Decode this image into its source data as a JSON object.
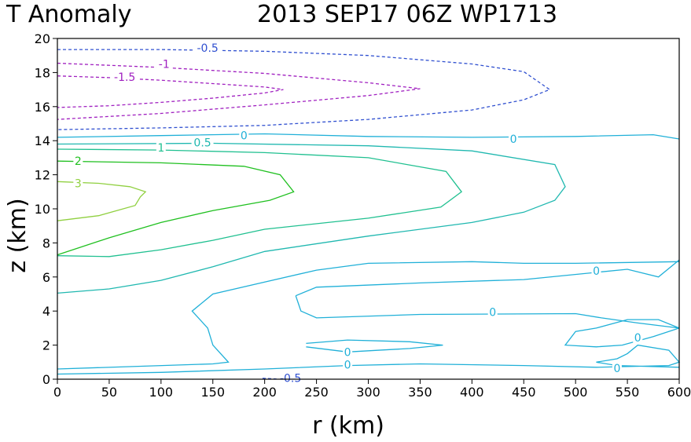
{
  "chart_data": {
    "type": "contour",
    "title_left": "T Anomaly",
    "title_right": "2013 SEP17 06Z   WP1713",
    "xlabel": "r (km)",
    "ylabel": "z (km)",
    "xlim": [
      0,
      600
    ],
    "ylim": [
      0,
      20
    ],
    "xticks": [
      0,
      50,
      100,
      150,
      200,
      250,
      300,
      350,
      400,
      450,
      500,
      550,
      600
    ],
    "yticks": [
      0,
      2,
      4,
      6,
      8,
      10,
      12,
      14,
      16,
      18,
      20
    ],
    "xtick_labels": [
      "0",
      "50",
      "100",
      "150",
      "200",
      "250",
      "300",
      "350",
      "400",
      "450",
      "500",
      "550",
      "600"
    ],
    "ytick_labels": [
      "0",
      "2",
      "4",
      "6",
      "8",
      "10",
      "12",
      "14",
      "16",
      "18",
      "20"
    ],
    "grid": false,
    "contours": [
      {
        "level": -1.5,
        "label": "-1.5",
        "color": "#a020c0",
        "dashed": true,
        "points": [
          [
            0,
            17.8
          ],
          [
            50,
            17.7
          ],
          [
            100,
            17.55
          ],
          [
            150,
            17.35
          ],
          [
            200,
            17.15
          ],
          [
            218,
            17.0
          ],
          [
            200,
            16.8
          ],
          [
            150,
            16.5
          ],
          [
            100,
            16.25
          ],
          [
            50,
            16.05
          ],
          [
            0,
            15.95
          ]
        ],
        "labels": [
          {
            "x": 65,
            "y": 17.75
          }
        ]
      },
      {
        "level": -1,
        "label": "-1",
        "color": "#a020c0",
        "dashed": true,
        "points": [
          [
            0,
            18.55
          ],
          [
            100,
            18.3
          ],
          [
            200,
            17.95
          ],
          [
            300,
            17.4
          ],
          [
            350,
            17.05
          ],
          [
            300,
            16.65
          ],
          [
            200,
            16.1
          ],
          [
            100,
            15.6
          ],
          [
            0,
            15.25
          ]
        ],
        "labels": [
          {
            "x": 103,
            "y": 18.5
          }
        ]
      },
      {
        "level": -0.5,
        "label": "-0.5",
        "color": "#3050d0",
        "dashed": true,
        "points": [
          [
            0,
            19.35
          ],
          [
            100,
            19.35
          ],
          [
            200,
            19.25
          ],
          [
            300,
            19.0
          ],
          [
            400,
            18.5
          ],
          [
            450,
            18.05
          ],
          [
            475,
            17.0
          ],
          [
            450,
            16.4
          ],
          [
            400,
            15.8
          ],
          [
            300,
            15.25
          ],
          [
            200,
            14.9
          ],
          [
            100,
            14.75
          ],
          [
            0,
            14.65
          ]
        ],
        "labels": [
          {
            "x": 145,
            "y": 19.45
          }
        ]
      },
      {
        "level": -0.5,
        "label": "-0.5",
        "color": "#3050d0",
        "dashed": true,
        "points": [
          [
            198,
            0.05
          ],
          [
            210,
            0.02
          ],
          [
            230,
            0.0
          ]
        ],
        "labels": [
          {
            "x": 225,
            "y": 0.08
          }
        ]
      },
      {
        "level": 0,
        "label": "0",
        "color": "#20b0d8",
        "dashed": false,
        "points": [
          [
            0,
            14.2
          ],
          [
            100,
            14.3
          ],
          [
            200,
            14.4
          ],
          [
            300,
            14.25
          ],
          [
            400,
            14.2
          ],
          [
            500,
            14.25
          ],
          [
            575,
            14.35
          ],
          [
            600,
            14.1
          ]
        ],
        "labels": [
          {
            "x": 180,
            "y": 14.3
          },
          {
            "x": 440,
            "y": 14.1
          }
        ]
      },
      {
        "level": 0.5,
        "label": "0.5",
        "color": "#20b8b0",
        "dashed": false,
        "points": [
          [
            0,
            13.8
          ],
          [
            150,
            13.85
          ],
          [
            300,
            13.7
          ],
          [
            400,
            13.4
          ],
          [
            480,
            12.6
          ],
          [
            490,
            11.3
          ],
          [
            480,
            10.5
          ],
          [
            450,
            9.8
          ],
          [
            400,
            9.2
          ],
          [
            300,
            8.4
          ],
          [
            200,
            7.5
          ],
          [
            150,
            6.6
          ],
          [
            100,
            5.8
          ],
          [
            50,
            5.3
          ],
          [
            0,
            5.05
          ]
        ],
        "labels": [
          {
            "x": 140,
            "y": 13.9
          }
        ]
      },
      {
        "level": 1,
        "label": "1",
        "color": "#20c090",
        "dashed": false,
        "points": [
          [
            0,
            13.5
          ],
          [
            100,
            13.45
          ],
          [
            200,
            13.3
          ],
          [
            300,
            13.0
          ],
          [
            375,
            12.2
          ],
          [
            390,
            11.0
          ],
          [
            370,
            10.1
          ],
          [
            300,
            9.45
          ],
          [
            200,
            8.8
          ],
          [
            150,
            8.15
          ],
          [
            100,
            7.6
          ],
          [
            50,
            7.2
          ],
          [
            0,
            7.25
          ]
        ],
        "labels": [
          {
            "x": 100,
            "y": 13.6
          }
        ]
      },
      {
        "level": 2,
        "label": "2",
        "color": "#20c020",
        "dashed": false,
        "points": [
          [
            0,
            12.8
          ],
          [
            100,
            12.7
          ],
          [
            180,
            12.5
          ],
          [
            215,
            12.0
          ],
          [
            228,
            11.0
          ],
          [
            205,
            10.5
          ],
          [
            150,
            9.9
          ],
          [
            100,
            9.2
          ],
          [
            50,
            8.3
          ],
          [
            0,
            7.3
          ]
        ],
        "labels": [
          {
            "x": 20,
            "y": 12.8
          }
        ]
      },
      {
        "level": 3,
        "label": "3",
        "color": "#90d040",
        "dashed": false,
        "points": [
          [
            0,
            11.6
          ],
          [
            40,
            11.5
          ],
          [
            70,
            11.3
          ],
          [
            85,
            11.0
          ],
          [
            80,
            10.7
          ],
          [
            75,
            10.2
          ],
          [
            40,
            9.6
          ],
          [
            0,
            9.3
          ]
        ],
        "labels": [
          {
            "x": 20,
            "y": 11.5
          }
        ]
      },
      {
        "level": 0,
        "label": "0",
        "color": "#20b0d8",
        "dashed": false,
        "points": [
          [
            230,
            4.9
          ],
          [
            250,
            5.4
          ],
          [
            350,
            5.65
          ],
          [
            450,
            5.85
          ],
          [
            550,
            6.45
          ],
          [
            580,
            6.0
          ],
          [
            600,
            7.0
          ]
        ],
        "labels": [
          {
            "x": 520,
            "y": 6.35
          }
        ]
      },
      {
        "level": 0,
        "label": "0",
        "color": "#20b0d8",
        "dashed": false,
        "points": [
          [
            230,
            4.9
          ],
          [
            235,
            4.0
          ],
          [
            250,
            3.6
          ],
          [
            350,
            3.8
          ],
          [
            500,
            3.85
          ],
          [
            525,
            3.6
          ],
          [
            560,
            3.3
          ],
          [
            600,
            3.0
          ]
        ],
        "labels": [
          {
            "x": 420,
            "y": 3.95
          }
        ]
      },
      {
        "level": 0,
        "label": "0",
        "color": "#20b0d8",
        "dashed": false,
        "points": [
          [
            600,
            3.0
          ],
          [
            575,
            2.5
          ],
          [
            545,
            2.0
          ],
          [
            520,
            1.9
          ],
          [
            490,
            2.0
          ],
          [
            500,
            2.8
          ],
          [
            520,
            3.0
          ],
          [
            550,
            3.5
          ],
          [
            580,
            3.5
          ],
          [
            600,
            3.0
          ]
        ],
        "labels": [
          {
            "x": 560,
            "y": 2.45
          }
        ]
      },
      {
        "level": 0,
        "label": "0",
        "color": "#20b0d8",
        "dashed": false,
        "points": [
          [
            240,
            2.1
          ],
          [
            280,
            2.3
          ],
          [
            340,
            2.2
          ],
          [
            372,
            2.0
          ],
          [
            340,
            1.8
          ],
          [
            280,
            1.6
          ],
          [
            240,
            1.9
          ]
        ],
        "labels": [
          {
            "x": 280,
            "y": 1.6
          }
        ]
      },
      {
        "level": 0,
        "label": "0",
        "color": "#20b0d8",
        "dashed": false,
        "points": [
          [
            0,
            0.6
          ],
          [
            150,
            0.9
          ],
          [
            165,
            1.0
          ],
          [
            150,
            2.0
          ],
          [
            145,
            3.0
          ],
          [
            130,
            4.0
          ],
          [
            150,
            5.0
          ],
          [
            200,
            5.7
          ],
          [
            250,
            6.4
          ],
          [
            300,
            6.8
          ],
          [
            400,
            6.9
          ],
          [
            450,
            6.8
          ],
          [
            500,
            6.8
          ],
          [
            600,
            6.9
          ]
        ],
        "labels": []
      },
      {
        "level": 0,
        "label": "0",
        "color": "#20b0d8",
        "dashed": false,
        "points": [
          [
            0,
            0.3
          ],
          [
            100,
            0.4
          ],
          [
            200,
            0.6
          ],
          [
            280,
            0.8
          ],
          [
            350,
            0.9
          ],
          [
            450,
            0.8
          ],
          [
            520,
            0.7
          ],
          [
            590,
            0.8
          ],
          [
            600,
            1.0
          ],
          [
            590,
            1.7
          ],
          [
            560,
            2.0
          ],
          [
            550,
            1.5
          ],
          [
            540,
            1.2
          ],
          [
            520,
            1.0
          ],
          [
            540,
            0.8
          ],
          [
            600,
            0.7
          ]
        ],
        "labels": [
          {
            "x": 280,
            "y": 0.85
          },
          {
            "x": 540,
            "y": 0.65
          }
        ]
      }
    ]
  }
}
